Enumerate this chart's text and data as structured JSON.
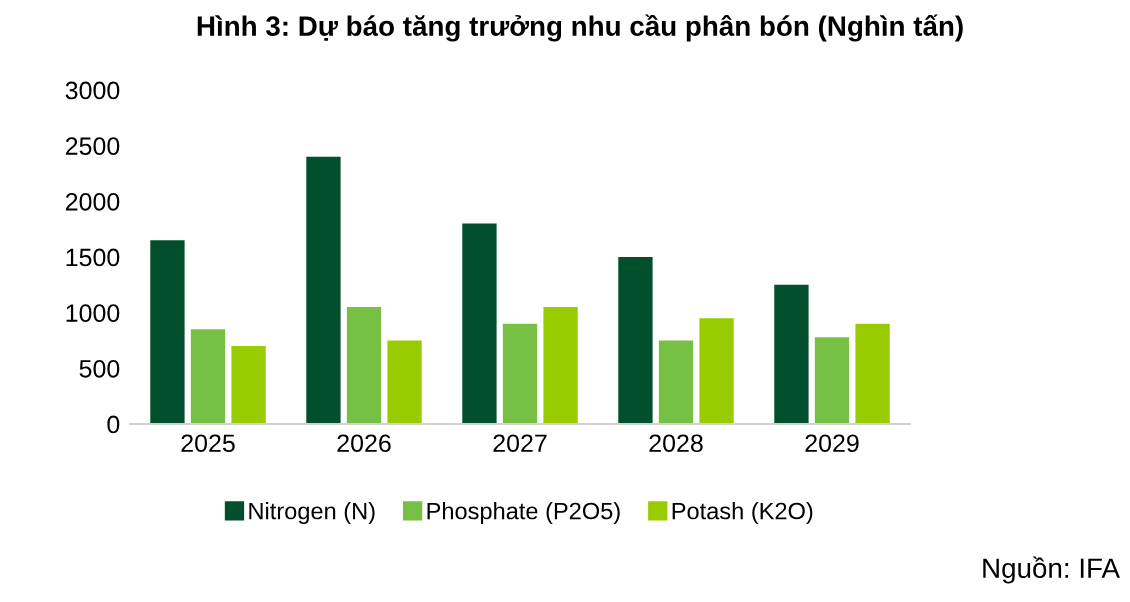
{
  "chart_data": {
    "type": "bar",
    "title": "Hình 3: Dự báo tăng trưởng nhu cầu phân bón (Nghìn tấn)",
    "categories": [
      "2025",
      "2026",
      "2027",
      "2028",
      "2029"
    ],
    "series": [
      {
        "name": "Nitrogen (N)",
        "color": "#024f2e",
        "values": [
          1650,
          2400,
          1800,
          1500,
          1250
        ]
      },
      {
        "name": "Phosphate (P2O5)",
        "color": "#76c043",
        "values": [
          850,
          1050,
          900,
          750,
          780
        ]
      },
      {
        "name": "Potash (K2O)",
        "color": "#99cc00",
        "values": [
          700,
          750,
          1050,
          950,
          900
        ]
      }
    ],
    "ylim": [
      0,
      3000
    ],
    "yticks": [
      0,
      500,
      1000,
      1500,
      2000,
      2500,
      3000
    ],
    "grid": false,
    "legend": "bottom",
    "annotations": [
      "Nguồn: IFA"
    ]
  }
}
